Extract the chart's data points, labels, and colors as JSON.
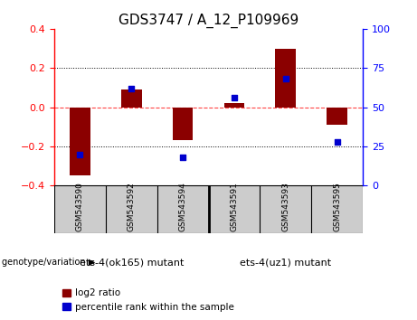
{
  "title": "GDS3747 / A_12_P109969",
  "samples": [
    "GSM543590",
    "GSM543592",
    "GSM543594",
    "GSM543591",
    "GSM543593",
    "GSM543595"
  ],
  "log2_ratio": [
    -0.35,
    0.09,
    -0.17,
    0.02,
    0.3,
    -0.09
  ],
  "percentile_rank": [
    20,
    62,
    18,
    56,
    68,
    28
  ],
  "ylim_left": [
    -0.4,
    0.4
  ],
  "ylim_right": [
    0,
    100
  ],
  "bar_color": "#8B0000",
  "dot_color": "#0000CD",
  "zero_line_color": "#FF4444",
  "grid_color": "#000000",
  "group1_label": "ets-4(ok165) mutant",
  "group2_label": "ets-4(uz1) mutant",
  "group1_color": "#90EE90",
  "group2_color": "#90EE90",
  "label_bg_color": "#CCCCCC",
  "genotype_label": "genotype/variation",
  "legend_bar_label": "log2 ratio",
  "legend_dot_label": "percentile rank within the sample",
  "title_fontsize": 11,
  "tick_fontsize": 8,
  "label_fontsize": 6.5,
  "legend_fontsize": 7.5,
  "genotype_fontsize": 8
}
